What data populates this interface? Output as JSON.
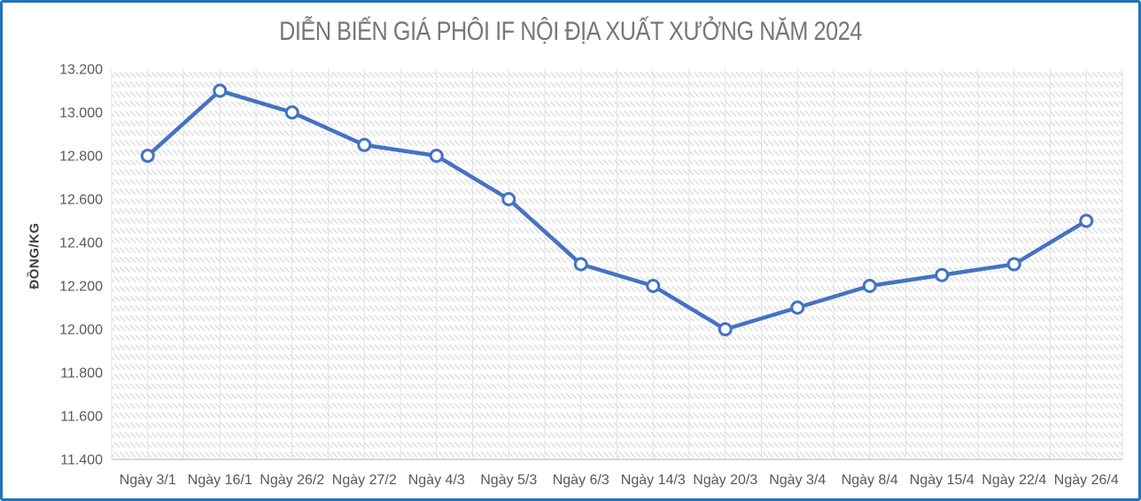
{
  "frame": {
    "border_color": "#1f72c4",
    "background": "#ffffff"
  },
  "chart_data": {
    "type": "line",
    "title": "DIỄN BIẾN GIÁ PHÔI IF NỘI ĐỊA XUẤT XƯỞNG NĂM 2024",
    "xlabel": "",
    "ylabel": "ĐỒNG/KG",
    "categories": [
      "Ngày 3/1",
      "Ngày 16/1",
      "Ngày 26/2",
      "Ngày 27/2",
      "Ngày 4/3",
      "Ngày 5/3",
      "Ngày 6/3",
      "Ngày 14/3",
      "Ngày 20/3",
      "Ngày 3/4",
      "Ngày 8/4",
      "Ngày 15/4",
      "Ngày 22/4",
      "Ngày 26/4"
    ],
    "values": [
      12800,
      13100,
      13000,
      12850,
      12800,
      12600,
      12300,
      12200,
      12000,
      12100,
      12200,
      12250,
      12300,
      12500
    ],
    "ylim": [
      11400,
      13200
    ],
    "ytick_step": 200,
    "ytick_labels": [
      "13.200",
      "13.000",
      "12.800",
      "12.600",
      "12.400",
      "12.200",
      "12.000",
      "11.800",
      "11.600",
      "11.400"
    ],
    "ytick_values": [
      13200,
      13000,
      12800,
      12600,
      12400,
      12200,
      12000,
      11800,
      11600,
      11400
    ],
    "grid": "vertical gridlines at half-category intervals; hatched plot-area fill",
    "legend": "none",
    "marker": "circle-white-fill",
    "colors": {
      "line": "#4472c4",
      "marker_fill": "#ffffff",
      "axis_text": "#595959",
      "title_text": "#767676",
      "gridline": "#e2e2e2",
      "hatch": "#d9d9d9",
      "axis_line": "#c9c9c9"
    }
  }
}
